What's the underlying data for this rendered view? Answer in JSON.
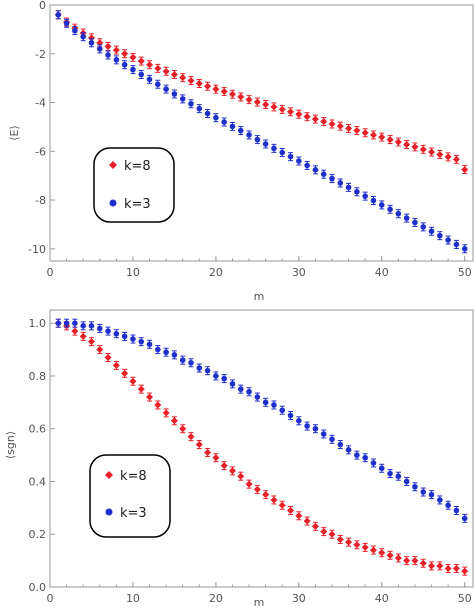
{
  "chart_data": [
    {
      "type": "scatter",
      "xlabel": "m",
      "ylabel": "⟨E⟩",
      "xlim": [
        0,
        51
      ],
      "ylim": [
        -10.5,
        0
      ],
      "xticks": [
        0,
        10,
        20,
        30,
        40,
        50
      ],
      "yticks": [
        0,
        -2,
        -4,
        -6,
        -8,
        -10
      ],
      "error_bars": true,
      "legend_position": "left",
      "series": [
        {
          "name": "k=8",
          "color": "#e8202a",
          "marker": "diamond",
          "x": [
            1,
            2,
            3,
            4,
            5,
            6,
            7,
            8,
            9,
            10,
            11,
            12,
            13,
            14,
            15,
            16,
            17,
            18,
            19,
            20,
            21,
            22,
            23,
            24,
            25,
            26,
            27,
            28,
            29,
            30,
            31,
            32,
            33,
            34,
            35,
            36,
            37,
            38,
            39,
            40,
            41,
            42,
            43,
            44,
            45,
            46,
            47,
            48,
            49,
            50
          ],
          "values": [
            -0.4,
            -0.7,
            -0.95,
            -1.15,
            -1.35,
            -1.55,
            -1.7,
            -1.85,
            -2.0,
            -2.15,
            -2.3,
            -2.45,
            -2.6,
            -2.72,
            -2.85,
            -2.98,
            -3.1,
            -3.22,
            -3.33,
            -3.45,
            -3.55,
            -3.66,
            -3.77,
            -3.88,
            -3.98,
            -4.08,
            -4.18,
            -4.28,
            -4.38,
            -4.48,
            -4.58,
            -4.68,
            -4.78,
            -4.88,
            -4.97,
            -5.06,
            -5.15,
            -5.24,
            -5.33,
            -5.42,
            -5.52,
            -5.62,
            -5.72,
            -5.82,
            -5.92,
            -6.03,
            -6.13,
            -6.23,
            -6.33,
            -6.75
          ]
        },
        {
          "name": "k=3",
          "color": "#1f2fcc",
          "marker": "circle",
          "x": [
            1,
            2,
            3,
            4,
            5,
            6,
            7,
            8,
            9,
            10,
            11,
            12,
            13,
            14,
            15,
            16,
            17,
            18,
            19,
            20,
            21,
            22,
            23,
            24,
            25,
            26,
            27,
            28,
            29,
            30,
            31,
            32,
            33,
            34,
            35,
            36,
            37,
            38,
            39,
            40,
            41,
            42,
            43,
            44,
            45,
            46,
            47,
            48,
            49,
            50
          ],
          "values": [
            -0.4,
            -0.75,
            -1.05,
            -1.3,
            -1.55,
            -1.8,
            -2.05,
            -2.25,
            -2.45,
            -2.65,
            -2.85,
            -3.05,
            -3.25,
            -3.45,
            -3.65,
            -3.85,
            -4.05,
            -4.25,
            -4.45,
            -4.62,
            -4.8,
            -4.98,
            -5.15,
            -5.33,
            -5.52,
            -5.7,
            -5.88,
            -6.05,
            -6.22,
            -6.4,
            -6.58,
            -6.76,
            -6.94,
            -7.12,
            -7.3,
            -7.48,
            -7.66,
            -7.84,
            -8.02,
            -8.2,
            -8.38,
            -8.56,
            -8.74,
            -8.92,
            -9.1,
            -9.28,
            -9.46,
            -9.64,
            -9.82,
            -10.0
          ]
        }
      ]
    },
    {
      "type": "scatter",
      "xlabel": "m",
      "ylabel": "⟨sgn⟩",
      "xlim": [
        0,
        51
      ],
      "ylim": [
        0,
        1.05
      ],
      "xticks": [
        0,
        10,
        20,
        30,
        40,
        50
      ],
      "yticks": [
        0.0,
        0.2,
        0.4,
        0.6,
        0.8,
        1.0
      ],
      "error_bars": true,
      "legend_position": "left",
      "series": [
        {
          "name": "k=8",
          "color": "#e8202a",
          "marker": "diamond",
          "x": [
            1,
            2,
            3,
            4,
            5,
            6,
            7,
            8,
            9,
            10,
            11,
            12,
            13,
            14,
            15,
            16,
            17,
            18,
            19,
            20,
            21,
            22,
            23,
            24,
            25,
            26,
            27,
            28,
            29,
            30,
            31,
            32,
            33,
            34,
            35,
            36,
            37,
            38,
            39,
            40,
            41,
            42,
            43,
            44,
            45,
            46,
            47,
            48,
            49,
            50
          ],
          "values": [
            1.0,
            0.99,
            0.97,
            0.95,
            0.93,
            0.9,
            0.87,
            0.84,
            0.81,
            0.78,
            0.75,
            0.72,
            0.69,
            0.66,
            0.63,
            0.6,
            0.57,
            0.54,
            0.51,
            0.49,
            0.46,
            0.44,
            0.42,
            0.39,
            0.37,
            0.35,
            0.33,
            0.31,
            0.29,
            0.27,
            0.25,
            0.23,
            0.21,
            0.2,
            0.18,
            0.17,
            0.16,
            0.15,
            0.14,
            0.13,
            0.12,
            0.11,
            0.1,
            0.1,
            0.09,
            0.08,
            0.08,
            0.07,
            0.07,
            0.06
          ]
        },
        {
          "name": "k=3",
          "color": "#1f2fcc",
          "marker": "circle",
          "x": [
            1,
            2,
            3,
            4,
            5,
            6,
            7,
            8,
            9,
            10,
            11,
            12,
            13,
            14,
            15,
            16,
            17,
            18,
            19,
            20,
            21,
            22,
            23,
            24,
            25,
            26,
            27,
            28,
            29,
            30,
            31,
            32,
            33,
            34,
            35,
            36,
            37,
            38,
            39,
            40,
            41,
            42,
            43,
            44,
            45,
            46,
            47,
            48,
            49,
            50
          ],
          "values": [
            1.0,
            1.0,
            1.0,
            0.99,
            0.99,
            0.98,
            0.97,
            0.96,
            0.95,
            0.94,
            0.93,
            0.92,
            0.9,
            0.89,
            0.88,
            0.86,
            0.85,
            0.83,
            0.82,
            0.8,
            0.79,
            0.77,
            0.75,
            0.74,
            0.72,
            0.7,
            0.69,
            0.67,
            0.65,
            0.63,
            0.61,
            0.6,
            0.58,
            0.56,
            0.54,
            0.52,
            0.5,
            0.49,
            0.47,
            0.45,
            0.43,
            0.42,
            0.4,
            0.38,
            0.36,
            0.35,
            0.33,
            0.31,
            0.29,
            0.26
          ]
        }
      ]
    }
  ]
}
